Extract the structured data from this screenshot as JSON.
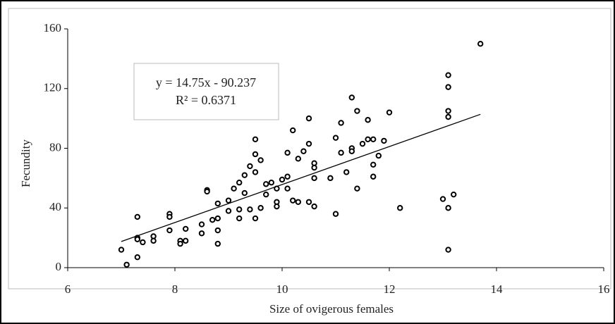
{
  "chart_data": {
    "type": "scatter",
    "x_label": "Size of ovigerous females",
    "y_label": "Fecundity",
    "annotation": [
      "y = 14.75x - 90.237",
      "R² = 0.6371"
    ],
    "color": "#000000",
    "x": [
      7.0,
      7.1,
      7.3,
      7.3,
      7.3,
      7.3,
      7.4,
      7.6,
      7.6,
      7.9,
      7.9,
      7.9,
      8.1,
      8.1,
      8.2,
      8.2,
      8.5,
      8.5,
      8.6,
      8.6,
      8.7,
      8.8,
      8.8,
      8.8,
      8.8,
      9.0,
      9.0,
      9.1,
      9.2,
      9.2,
      9.2,
      9.3,
      9.3,
      9.4,
      9.4,
      9.5,
      9.5,
      9.5,
      9.5,
      9.6,
      9.6,
      9.7,
      9.7,
      9.8,
      9.9,
      9.9,
      9.9,
      10.0,
      10.1,
      10.1,
      10.1,
      10.2,
      10.2,
      10.3,
      10.3,
      10.4,
      10.5,
      10.5,
      10.5,
      10.6,
      10.6,
      10.6,
      10.6,
      10.9,
      11.0,
      11.0,
      11.1,
      11.1,
      11.2,
      11.3,
      11.3,
      11.3,
      11.4,
      11.4,
      11.5,
      11.6,
      11.6,
      11.7,
      11.7,
      11.7,
      11.8,
      11.9,
      12.0,
      12.2,
      13.0,
      13.1,
      13.2,
      13.1,
      13.1,
      13.1,
      13.1,
      13.1,
      13.7
    ],
    "y": [
      12,
      2,
      7,
      20,
      19,
      34,
      17,
      21,
      18,
      25,
      36,
      34,
      18,
      16,
      18,
      26,
      29,
      23,
      52,
      51,
      32,
      33,
      25,
      16,
      43,
      38,
      45,
      53,
      39,
      33,
      57,
      62,
      50,
      39,
      68,
      86,
      76,
      64,
      33,
      40,
      72,
      56,
      49,
      57,
      44,
      41,
      53,
      59,
      77,
      61,
      53,
      92,
      45,
      73,
      44,
      78,
      100,
      83,
      44,
      70,
      67,
      60,
      41,
      60,
      87,
      36,
      97,
      77,
      64,
      114,
      80,
      78,
      105,
      53,
      83,
      99,
      86,
      86,
      69,
      61,
      75,
      85,
      104,
      40,
      46,
      40,
      49,
      101,
      105,
      121,
      129,
      12,
      150
    ],
    "xlim": [
      6,
      16
    ],
    "xticks": [
      6,
      8,
      10,
      12,
      14,
      16
    ],
    "ylim": [
      0,
      160
    ],
    "yticks": [
      0,
      40,
      80,
      120,
      160
    ],
    "trendline": true
  }
}
